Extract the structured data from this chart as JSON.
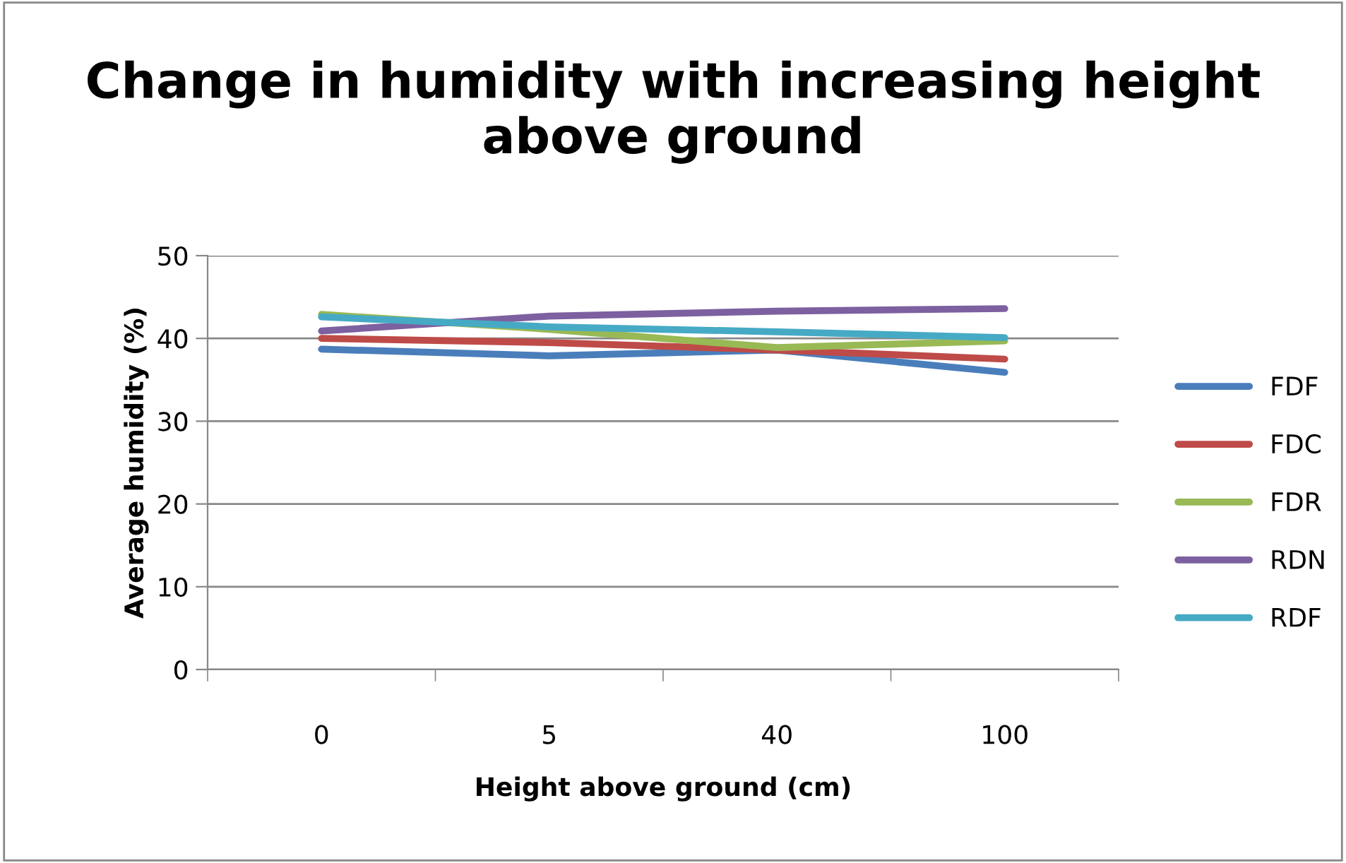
{
  "chart_data": {
    "type": "line",
    "title": "Change in humidity with increasing height above ground",
    "xlabel": "Height above ground (cm)",
    "ylabel": "Average humidity (%)",
    "categories": [
      "0",
      "5",
      "40",
      "100"
    ],
    "series": [
      {
        "name": "FDF",
        "color": "#4a7ebb",
        "values": [
          38.7,
          37.9,
          38.6,
          35.9
        ]
      },
      {
        "name": "FDC",
        "color": "#be4b48",
        "values": [
          40.0,
          39.5,
          38.6,
          37.5
        ]
      },
      {
        "name": "FDR",
        "color": "#98b954",
        "values": [
          42.9,
          41.1,
          38.9,
          39.7
        ]
      },
      {
        "name": "RDN",
        "color": "#7d60a0",
        "values": [
          40.9,
          42.7,
          43.3,
          43.6
        ]
      },
      {
        "name": "RDF",
        "color": "#46aac5",
        "values": [
          42.6,
          41.4,
          40.8,
          40.1
        ]
      }
    ],
    "ylim": [
      0,
      50
    ],
    "yticks": [
      0,
      10,
      20,
      30,
      40,
      50
    ],
    "grid": "y",
    "legend": "right",
    "marker": "none",
    "line_style": "solid"
  }
}
